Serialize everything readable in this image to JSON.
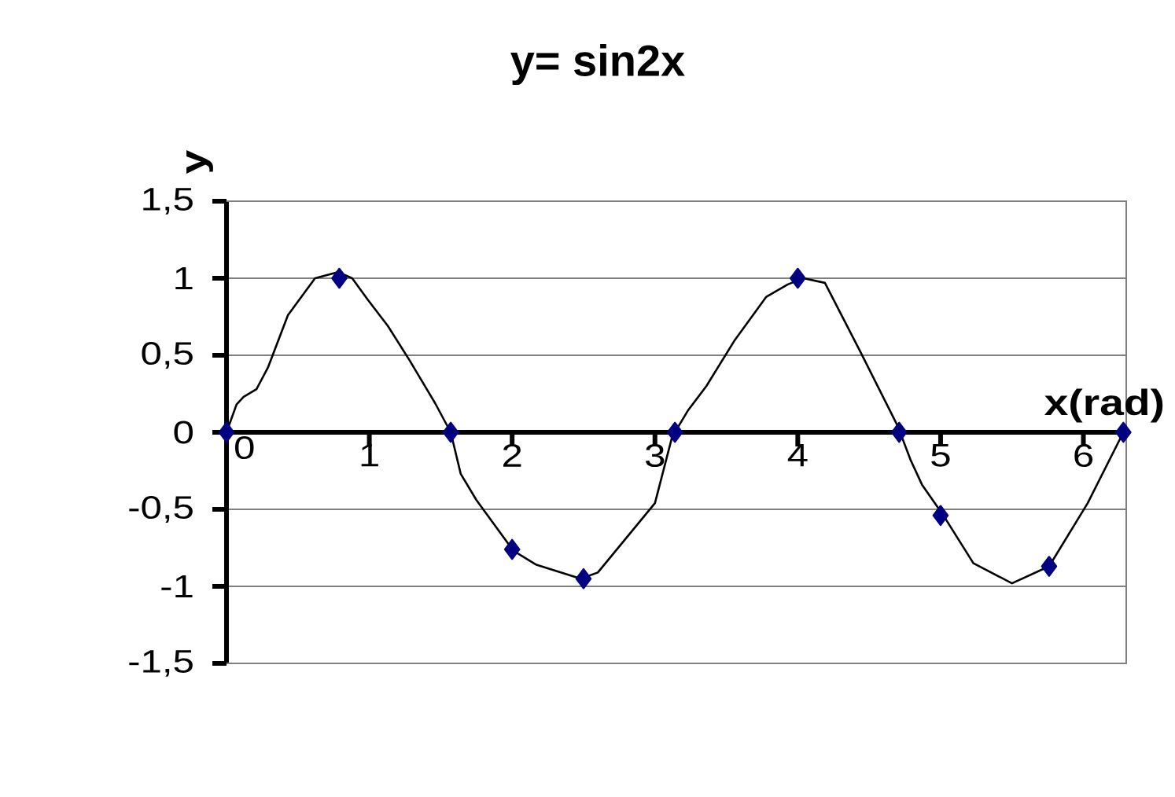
{
  "chart_data": {
    "type": "line",
    "title": "y= sin2x",
    "xlabel": "x(rad)",
    "ylabel": "y",
    "xlim": [
      0,
      6.3
    ],
    "xticks": [
      0,
      1,
      2,
      3,
      4,
      5,
      6
    ],
    "ylim": [
      -1.5,
      1.5
    ],
    "yticks": [
      {
        "value": -1.5,
        "label": "-1,5"
      },
      -1,
      {
        "value": -0.5,
        "label": "-0,5"
      },
      0,
      {
        "value": 0.5,
        "label": "0,5"
      },
      1,
      {
        "value": 1.5,
        "label": "1,5"
      }
    ],
    "grid": "y",
    "series": [
      {
        "type": "line",
        "color": "#000000",
        "x": [
          0,
          0.07,
          0.12,
          0.21,
          0.29,
          0.43,
          0.62,
          0.78,
          0.88,
          0.99,
          1.13,
          1.28,
          1.46,
          1.57,
          1.64,
          1.75,
          2.01,
          2.17,
          2.48,
          2.6,
          3.0,
          3.12,
          3.23,
          3.36,
          3.56,
          3.78,
          3.93,
          4.04,
          4.19,
          4.44,
          4.7,
          4.79,
          4.87,
          5.02,
          5.23,
          5.5,
          5.76,
          6.03,
          6.28
        ],
        "values": [
          0,
          0.18,
          0.23,
          0.28,
          0.42,
          0.76,
          1.0,
          1.04,
          1.0,
          0.86,
          0.69,
          0.47,
          0.19,
          0,
          -0.27,
          -0.44,
          -0.77,
          -0.86,
          -0.95,
          -0.91,
          -0.46,
          -0.03,
          0.14,
          0.3,
          0.6,
          0.88,
          0.96,
          1.0,
          0.97,
          0.52,
          0.04,
          -0.18,
          -0.34,
          -0.54,
          -0.85,
          -0.98,
          -0.87,
          -0.46,
          0
        ]
      },
      {
        "type": "scatter",
        "color": "#000080",
        "marker": "diamond",
        "x": [
          0,
          0.79,
          1.57,
          2,
          2.5,
          3.14,
          4,
          4.71,
          5,
          5.76,
          6.28
        ],
        "values": [
          0,
          1,
          0,
          -0.76,
          -0.95,
          0,
          1,
          0,
          -0.54,
          -0.87,
          0
        ]
      }
    ]
  }
}
